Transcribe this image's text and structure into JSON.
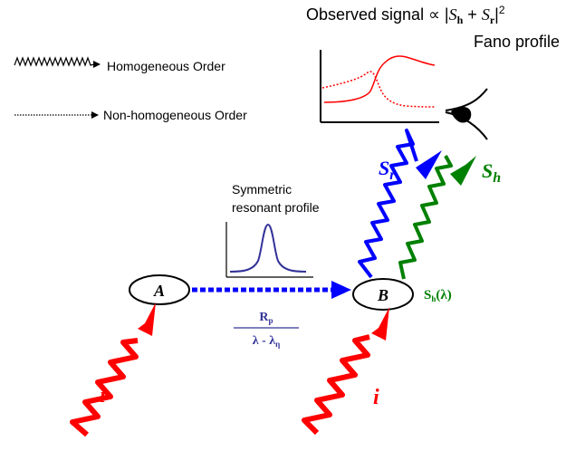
{
  "header": {
    "signal_prefix": "Observed signal ∝ |",
    "S": "S",
    "h_sub": "h",
    "plus": " + ",
    "r_sub": "r",
    "signal_suffix": "|",
    "power": "2",
    "fano": "Fano profile"
  },
  "legend": {
    "homogeneous": "Homogeneous Order",
    "non_homogeneous": "Non-homogeneous Order"
  },
  "nodes": {
    "a_label": "A",
    "b_label": "B",
    "incident_label": "i"
  },
  "symmetric": {
    "line1": "Symmetric",
    "line2": "resonant profile"
  },
  "fraction": {
    "numerator": "R",
    "numerator_sub": "p",
    "denominator_main": "λ - λ",
    "denominator_sub": "η"
  },
  "signals": {
    "S": "S",
    "r_sub": "r",
    "h_sub": "h",
    "sh_lambda_main": "S",
    "sh_lambda_sub": "h",
    "sh_lambda_arg": "(λ)"
  },
  "colors": {
    "incident": "#ff0000",
    "s_r": "#0000ff",
    "s_h": "#008000",
    "transfer": "#0000ff",
    "symmetric_curve": "#333399",
    "fraction_text": "#333399",
    "fano_curves": "#ff0000",
    "ink": "#000000"
  },
  "icons": {
    "eye": "eye-icon",
    "homogeneous_arrow": "wavy-arrow-icon",
    "non_homogeneous_arrow": "dotted-arrow-icon"
  }
}
